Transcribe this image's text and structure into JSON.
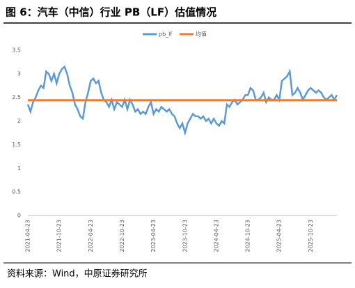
{
  "chart_data": {
    "type": "line",
    "title": "图 6：汽车（中信）行业 PB（LF）估值情况",
    "source": "资料来源：Wind，中原证券研究所",
    "categories": [
      "2021-04-23",
      null,
      null,
      null,
      null,
      null,
      null,
      null,
      null,
      null,
      null,
      null,
      "2021-10-23",
      null,
      null,
      null,
      null,
      null,
      null,
      null,
      null,
      null,
      null,
      null,
      "2022-04-23",
      null,
      null,
      null,
      null,
      null,
      null,
      null,
      null,
      null,
      null,
      null,
      "2022-10-23",
      null,
      null,
      null,
      null,
      null,
      null,
      null,
      null,
      null,
      null,
      null,
      "2023-04-23",
      null,
      null,
      null,
      null,
      null,
      null,
      null,
      null,
      null,
      null,
      null,
      "2023-10-23",
      null,
      null,
      null,
      null,
      null,
      null,
      null,
      null,
      null,
      null,
      null,
      "2024-04-23",
      null,
      null,
      null,
      null,
      null,
      null,
      null,
      null,
      null,
      null,
      null,
      "2024-10-23",
      null,
      null,
      null,
      null,
      null,
      null,
      null,
      null,
      null,
      null,
      null,
      "2025-04-23",
      null,
      null,
      null,
      null,
      null,
      null,
      null,
      null,
      null,
      null,
      null,
      "2025-10-23",
      null,
      null,
      null,
      null,
      null,
      null,
      null,
      null,
      null,
      null
    ],
    "series": [
      {
        "name": "pb_lf",
        "color": "#5b9bd5",
        "values": [
          2.35,
          2.2,
          2.4,
          2.5,
          2.65,
          2.75,
          2.7,
          3.05,
          3.0,
          2.85,
          3.0,
          2.8,
          3.0,
          3.1,
          3.15,
          3.0,
          2.75,
          2.6,
          2.35,
          2.25,
          2.1,
          2.05,
          2.4,
          2.6,
          2.85,
          2.9,
          2.8,
          2.85,
          2.6,
          2.45,
          2.4,
          2.3,
          2.45,
          2.25,
          2.4,
          2.35,
          2.3,
          2.45,
          2.25,
          2.45,
          2.35,
          2.2,
          2.25,
          2.15,
          2.2,
          2.15,
          2.3,
          2.4,
          2.15,
          2.25,
          2.2,
          2.3,
          2.25,
          2.2,
          2.25,
          2.15,
          2.1,
          1.95,
          1.85,
          1.95,
          1.75,
          1.95,
          2.05,
          2.15,
          2.1,
          2.1,
          2.05,
          2.1,
          2.0,
          2.05,
          1.95,
          2.05,
          1.95,
          1.9,
          2.0,
          1.95,
          2.35,
          2.3,
          2.4,
          2.45,
          2.35,
          2.4,
          2.45,
          2.55,
          2.55,
          2.7,
          2.65,
          2.45,
          2.45,
          2.5,
          2.6,
          2.4,
          2.5,
          2.45,
          2.45,
          2.55,
          2.45,
          2.85,
          2.9,
          2.95,
          3.05,
          2.55,
          2.6,
          2.7,
          2.6,
          2.45,
          2.55,
          2.65,
          2.7,
          2.65,
          2.6,
          2.65,
          2.6,
          2.5,
          2.45,
          2.5,
          2.55,
          2.45,
          2.55
        ]
      },
      {
        "name": "均值",
        "color": "#ed7d31",
        "values": [
          2.44,
          2.44,
          2.44,
          2.44,
          2.44,
          2.44,
          2.44,
          2.44,
          2.44,
          2.44,
          2.44,
          2.44,
          2.44,
          2.44,
          2.44,
          2.44,
          2.44,
          2.44,
          2.44,
          2.44,
          2.44,
          2.44,
          2.44,
          2.44,
          2.44,
          2.44,
          2.44,
          2.44,
          2.44,
          2.44,
          2.44,
          2.44,
          2.44,
          2.44,
          2.44,
          2.44,
          2.44,
          2.44,
          2.44,
          2.44,
          2.44,
          2.44,
          2.44,
          2.44,
          2.44,
          2.44,
          2.44,
          2.44,
          2.44,
          2.44,
          2.44,
          2.44,
          2.44,
          2.44,
          2.44,
          2.44,
          2.44,
          2.44,
          2.44,
          2.44,
          2.44,
          2.44,
          2.44,
          2.44,
          2.44,
          2.44,
          2.44,
          2.44,
          2.44,
          2.44,
          2.44,
          2.44,
          2.44,
          2.44,
          2.44,
          2.44,
          2.44,
          2.44,
          2.44,
          2.44,
          2.44,
          2.44,
          2.44,
          2.44,
          2.44,
          2.44,
          2.44,
          2.44,
          2.44,
          2.44,
          2.44,
          2.44,
          2.44,
          2.44,
          2.44,
          2.44,
          2.44,
          2.44,
          2.44,
          2.44,
          2.44,
          2.44,
          2.44,
          2.44,
          2.44,
          2.44,
          2.44,
          2.44,
          2.44,
          2.44,
          2.44,
          2.44,
          2.44,
          2.44,
          2.44,
          2.44,
          2.44,
          2.44,
          2.44
        ]
      }
    ],
    "ylim": [
      0,
      3.5
    ],
    "yticks": [
      0,
      0.5,
      1,
      1.5,
      2,
      2.5,
      3,
      3.5
    ],
    "grid": false
  }
}
